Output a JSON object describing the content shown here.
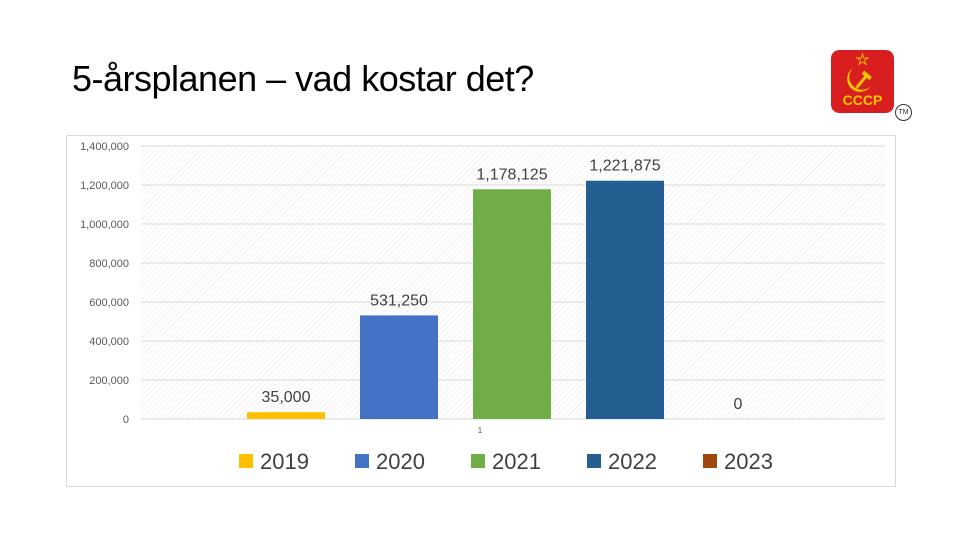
{
  "slide": {
    "title": "5-årsplanen – vad kostar det?",
    "logo_text": "CCCP",
    "tm_text": "TM"
  },
  "colors": {
    "logo_red": "#d81e1e",
    "logo_gold": "#f5c400"
  },
  "chart_data": {
    "type": "bar",
    "title": "",
    "xlabel": "",
    "ylabel": "",
    "ylim": [
      0,
      1400000
    ],
    "ytick_step": 200000,
    "ytick_labels": [
      "0",
      "200,000",
      "400,000",
      "600,000",
      "800,000",
      "1,000,000",
      "1,200,000",
      "1,400,000"
    ],
    "category_label": "1",
    "legend_position": "bottom",
    "series": [
      {
        "name": "2019",
        "value": 35000,
        "label": "35,000",
        "color": "#ffc000"
      },
      {
        "name": "2020",
        "value": 531250,
        "label": "531,250",
        "color": "#4472c4"
      },
      {
        "name": "2021",
        "value": 1178125,
        "label": "1,178,125",
        "color": "#70ad47"
      },
      {
        "name": "2022",
        "value": 1221875,
        "label": "1,221,875",
        "color": "#255e91"
      },
      {
        "name": "2023",
        "value": 0,
        "label": "0",
        "color": "#9e480e"
      }
    ]
  }
}
